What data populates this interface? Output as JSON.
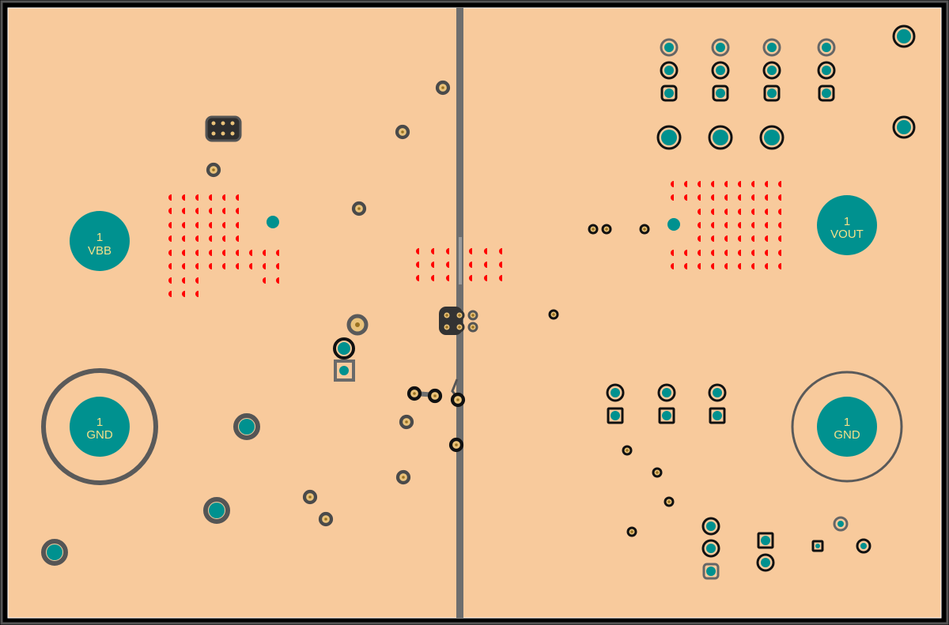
{
  "colors": {
    "board": "#f8ca9c",
    "frame": "#000000",
    "copper_pad": "#00918f",
    "via_red": "#ff0000",
    "trace_gray": "#6e6e6e",
    "drill": "#e9c27a",
    "label": "#f3e08a"
  },
  "pads": {
    "vbb": {
      "number": "1",
      "net": "VBB"
    },
    "gnd_left": {
      "number": "1",
      "net": "GND"
    },
    "vout": {
      "number": "1",
      "net": "VOUT"
    },
    "gnd_right": {
      "number": "1",
      "net": "GND"
    }
  }
}
